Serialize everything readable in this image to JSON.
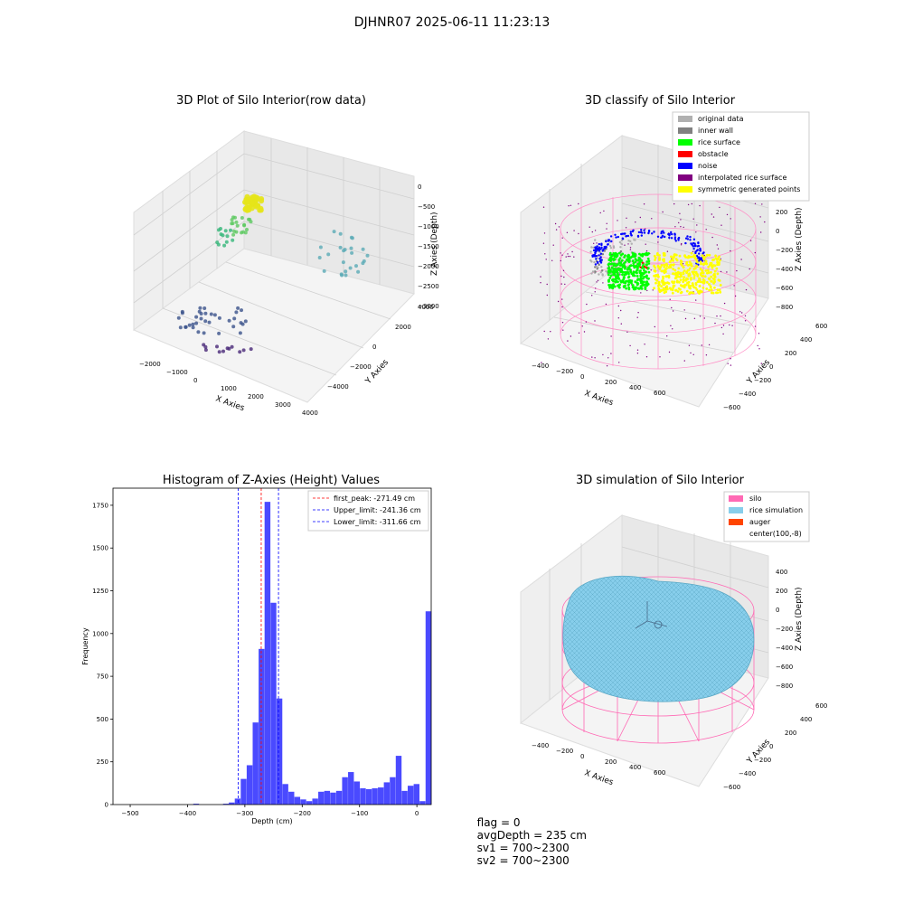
{
  "figure_title": "DJHNR07 2025-06-11 11:23:13",
  "status": {
    "flag": "flag = 0",
    "avg_depth": "avgDepth = 235 cm",
    "sv1": "sv1 = 700~2300",
    "sv2": "sv2 = 700~2300"
  },
  "colors": {
    "original_data": "#b0b0b0",
    "inner_wall": "#808080",
    "rice_surface": "#00ff00",
    "obstacle": "#ff0000",
    "noise": "#0000ff",
    "interpolated_rice_surface": "#800080",
    "symmetric_generated_points": "#ffff00",
    "silo": "#ff69b4",
    "rice_simulation": "#87ceeb",
    "auger": "#ff4500",
    "hist_bar": "#4a4aff",
    "first_peak_line": "#ff0000",
    "limit_line": "#0000ff"
  },
  "chart_data": [
    {
      "id": "raw",
      "type": "scatter",
      "title": "3D Plot of Silo Interior(row data)",
      "xlabel": "X Axies",
      "ylabel": "Y Axies",
      "zlabel": "Z Axies (Depth)",
      "x_ticks": [
        "−2000",
        "−1000",
        "0",
        "1000",
        "2000",
        "3000",
        "4000"
      ],
      "y_ticks": [
        "−4000",
        "−2000",
        "0",
        "2000",
        "4000"
      ],
      "z_ticks": [
        "0",
        "−500",
        "−1000",
        "−1500",
        "−2000",
        "−2500",
        "−3000"
      ],
      "colormap": "viridis"
    },
    {
      "id": "classify",
      "type": "scatter",
      "title": "3D classify of Silo Interior",
      "xlabel": "X Axies",
      "ylabel": "Y Axies",
      "zlabel": "Z Axies (Depth)",
      "x_ticks": [
        "−400",
        "−200",
        "0",
        "200",
        "400",
        "600"
      ],
      "y_ticks": [
        "−600",
        "−400",
        "−200",
        "0",
        "200",
        "400",
        "600"
      ],
      "z_ticks": [
        "200",
        "0",
        "−200",
        "−400",
        "−600",
        "−800"
      ],
      "legend_position": "top-right",
      "legend": [
        "original data",
        "inner wall",
        "rice surface",
        "obstacle",
        "noise",
        "interpolated rice surface",
        "symmetric generated points"
      ]
    },
    {
      "id": "histogram",
      "type": "bar",
      "title": "Histogram of Z-Axies (Height) Values",
      "xlabel": "Depth (cm)",
      "ylabel": "Frequency",
      "xlim": [
        -530,
        25
      ],
      "ylim": [
        0,
        1850
      ],
      "x_ticks": [
        -500,
        -400,
        -300,
        -200,
        -100,
        0
      ],
      "y_ticks": [
        0,
        250,
        500,
        750,
        1000,
        1250,
        1500,
        1750
      ],
      "bin_width": 10.4,
      "bins": [
        {
          "x": -390,
          "v": 5
        },
        {
          "x": -338,
          "v": 5
        },
        {
          "x": -328,
          "v": 12
        },
        {
          "x": -317.6,
          "v": 35
        },
        {
          "x": -307.2,
          "v": 150
        },
        {
          "x": -296.8,
          "v": 230
        },
        {
          "x": -286.4,
          "v": 480
        },
        {
          "x": -276,
          "v": 910
        },
        {
          "x": -265.6,
          "v": 1770
        },
        {
          "x": -255.2,
          "v": 1180
        },
        {
          "x": -244.8,
          "v": 620
        },
        {
          "x": -234.4,
          "v": 120
        },
        {
          "x": -224,
          "v": 75
        },
        {
          "x": -213.6,
          "v": 45
        },
        {
          "x": -203.2,
          "v": 30
        },
        {
          "x": -192.8,
          "v": 20
        },
        {
          "x": -182.4,
          "v": 35
        },
        {
          "x": -172,
          "v": 75
        },
        {
          "x": -161.6,
          "v": 80
        },
        {
          "x": -151.2,
          "v": 70
        },
        {
          "x": -140.8,
          "v": 80
        },
        {
          "x": -130.4,
          "v": 160
        },
        {
          "x": -120,
          "v": 190
        },
        {
          "x": -109.6,
          "v": 135
        },
        {
          "x": -99.2,
          "v": 95
        },
        {
          "x": -88.8,
          "v": 90
        },
        {
          "x": -78.4,
          "v": 95
        },
        {
          "x": -68,
          "v": 100
        },
        {
          "x": -57.6,
          "v": 130
        },
        {
          "x": -47.2,
          "v": 160
        },
        {
          "x": -36.8,
          "v": 285
        },
        {
          "x": -26.4,
          "v": 80
        },
        {
          "x": -16,
          "v": 110
        },
        {
          "x": -5.6,
          "v": 120
        },
        {
          "x": 4.8,
          "v": 20
        },
        {
          "x": 15.2,
          "v": 1130
        }
      ],
      "vlines": [
        {
          "label": "first_peak: -271.49 cm",
          "x": -271.49,
          "color": "#ff0000"
        },
        {
          "label": "Upper_limit: -241.36 cm",
          "x": -241.36,
          "color": "#0000ff"
        },
        {
          "label": "Lower_limit: -311.66 cm",
          "x": -311.66,
          "color": "#0000ff"
        }
      ],
      "legend_position": "top-right"
    },
    {
      "id": "simulation",
      "type": "surface",
      "title": "3D simulation of Silo Interior",
      "xlabel": "X Axies",
      "ylabel": "Y Axies",
      "zlabel": "Z Axies (Depth)",
      "x_ticks": [
        "−400",
        "−200",
        "0",
        "200",
        "400",
        "600"
      ],
      "y_ticks": [
        "−600",
        "−400",
        "−200",
        "0",
        "200",
        "400",
        "600"
      ],
      "z_ticks": [
        "400",
        "200",
        "0",
        "−200",
        "−400",
        "−600",
        "−800"
      ],
      "legend_position": "top-right",
      "legend": [
        "silo",
        "rice simulation",
        "auger",
        "center(100,-8)"
      ]
    }
  ]
}
